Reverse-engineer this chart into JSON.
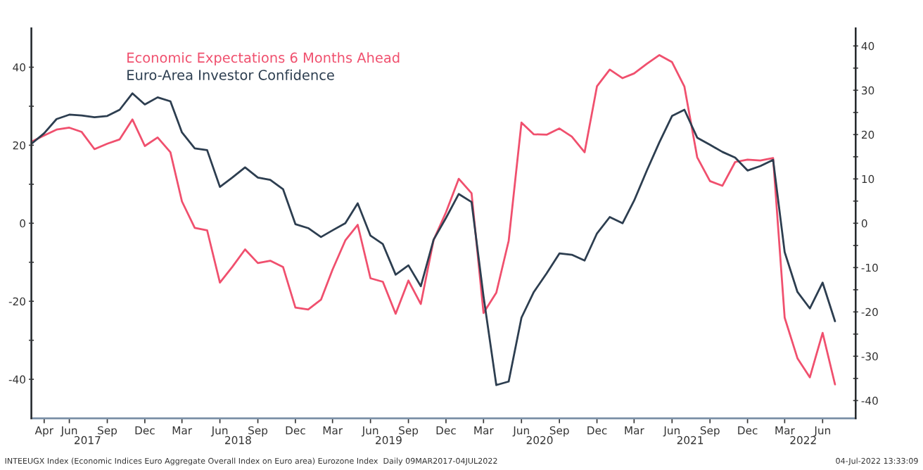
{
  "chart_data": {
    "type": "line",
    "x": [
      "2017-03",
      "2017-04",
      "2017-05",
      "2017-06",
      "2017-07",
      "2017-08",
      "2017-09",
      "2017-10",
      "2017-11",
      "2017-12",
      "2018-01",
      "2018-02",
      "2018-03",
      "2018-04",
      "2018-05",
      "2018-06",
      "2018-07",
      "2018-08",
      "2018-09",
      "2018-10",
      "2018-11",
      "2018-12",
      "2019-01",
      "2019-02",
      "2019-03",
      "2019-04",
      "2019-05",
      "2019-06",
      "2019-07",
      "2019-08",
      "2019-09",
      "2019-10",
      "2019-11",
      "2019-12",
      "2020-01",
      "2020-02",
      "2020-03",
      "2020-04",
      "2020-05",
      "2020-06",
      "2020-07",
      "2020-08",
      "2020-09",
      "2020-10",
      "2020-11",
      "2020-12",
      "2021-01",
      "2021-02",
      "2021-03",
      "2021-04",
      "2021-05",
      "2021-06",
      "2021-07",
      "2021-08",
      "2021-09",
      "2021-10",
      "2021-11",
      "2021-12",
      "2022-01",
      "2022-02",
      "2022-03",
      "2022-04",
      "2022-05",
      "2022-06",
      "2022-07"
    ],
    "series": [
      {
        "name": "Economic Expectations 6 Months Ahead",
        "color": "#f0506e",
        "axis": "y",
        "values": [
          20.9,
          22.5,
          24.0,
          24.5,
          23.4,
          19.0,
          20.4,
          21.5,
          26.6,
          19.8,
          22.0,
          18.2,
          5.6,
          -1.2,
          -1.8,
          -15.2,
          -11.2,
          -6.7,
          -10.2,
          -9.6,
          -11.2,
          -21.6,
          -22.1,
          -19.6,
          -11.9,
          -4.4,
          -0.4,
          -14.1,
          -15.0,
          -23.2,
          -14.7,
          -20.7,
          -4.3,
          2.8,
          11.4,
          7.7,
          -23,
          -17.8,
          -4.5,
          25.8,
          22.8,
          22.7,
          24.3,
          22.2,
          18.2,
          35.1,
          39.4,
          37.2,
          38.4,
          40.9,
          43.1,
          41.3,
          35.0,
          16.9,
          10.8,
          9.6,
          15.7,
          16.3,
          16.1,
          16.7,
          -24.2,
          -34.6,
          -39.5,
          -28.1,
          -41.3
        ]
      },
      {
        "name": "Euro-Area Investor Confidence",
        "color": "#2d3e50",
        "axis": "y2",
        "values": [
          17.9,
          20.3,
          23.5,
          24.5,
          24.3,
          23.9,
          24.2,
          25.6,
          29.3,
          26.8,
          28.4,
          27.5,
          20.5,
          16.9,
          16.5,
          8.2,
          10.3,
          12.6,
          10.3,
          9.8,
          7.7,
          -0.2,
          -1.1,
          -3.1,
          -1.6,
          0,
          4.5,
          -2.8,
          -4.7,
          -11.6,
          -9.5,
          -14.2,
          -3.7,
          1.2,
          6.6,
          4.8,
          -16.5,
          -36.5,
          -35.7,
          -21.3,
          -15.5,
          -11.3,
          -6.8,
          -7.1,
          -8.4,
          -2.3,
          1.4,
          0,
          5.1,
          11.9,
          18.2,
          24.2,
          25.6,
          19.3,
          17.7,
          16.1,
          14.8,
          11.9,
          12.9,
          14.3,
          -6.5,
          -15.5,
          -19.2,
          -13.4,
          -22.1
        ]
      }
    ],
    "xlim": [
      "2017-03-01",
      "2022-08-20"
    ],
    "xticks": [
      {
        "value": "2017-04",
        "label": "Apr"
      },
      {
        "value": "2017-06",
        "label": "Jun"
      },
      {
        "value": "2017-09",
        "label": "Sep"
      },
      {
        "value": "2017-12",
        "label": "Dec"
      },
      {
        "value": "2018-03",
        "label": "Mar"
      },
      {
        "value": "2018-06",
        "label": "Jun"
      },
      {
        "value": "2018-09",
        "label": "Sep"
      },
      {
        "value": "2018-12",
        "label": "Dec"
      },
      {
        "value": "2019-03",
        "label": "Mar"
      },
      {
        "value": "2019-06",
        "label": "Jun"
      },
      {
        "value": "2019-09",
        "label": "Sep"
      },
      {
        "value": "2019-12",
        "label": "Dec"
      },
      {
        "value": "2020-03",
        "label": "Mar"
      },
      {
        "value": "2020-06",
        "label": "Jun"
      },
      {
        "value": "2020-09",
        "label": "Sep"
      },
      {
        "value": "2020-12",
        "label": "Dec"
      },
      {
        "value": "2021-03",
        "label": "Mar"
      },
      {
        "value": "2021-06",
        "label": "Jun"
      },
      {
        "value": "2021-09",
        "label": "Sep"
      },
      {
        "value": "2021-12",
        "label": "Dec"
      },
      {
        "value": "2022-03",
        "label": "Mar"
      },
      {
        "value": "2022-06",
        "label": "Jun"
      }
    ],
    "x2lim": [
      "2017-03-01",
      "2022-08-20"
    ],
    "x2ticks": [
      {
        "value": "2017-07-15",
        "label": "2017"
      },
      {
        "value": "2018-07-15",
        "label": "2018"
      },
      {
        "value": "2019-07-15",
        "label": "2019"
      },
      {
        "value": "2020-07-15",
        "label": "2020"
      },
      {
        "value": "2021-07-15",
        "label": "2021"
      },
      {
        "value": "2022-04-15",
        "label": "2022"
      }
    ],
    "ylim": [
      -50,
      50
    ],
    "yticks": [
      -40,
      {
        "value": -30,
        "label": null
      },
      -20,
      {
        "value": -10,
        "label": null
      },
      0,
      {
        "value": 10,
        "label": null
      },
      20,
      {
        "value": 30,
        "label": null
      },
      40
    ],
    "y2lim": [
      -44,
      44
    ],
    "y2ticks": [
      -40,
      {
        "value": -35,
        "label": null
      },
      -30,
      {
        "value": -25,
        "label": null
      },
      -20,
      {
        "value": -15,
        "label": null
      },
      -10,
      {
        "value": -5,
        "label": null
      },
      0,
      {
        "value": 5,
        "label": null
      },
      10,
      {
        "value": 15,
        "label": null
      },
      20,
      {
        "value": 25,
        "label": null
      },
      30,
      {
        "value": 35,
        "label": null
      },
      40
    ],
    "legend": "top left",
    "annotations": [
      "INTEEUGX Index (Economic Indices Euro Aggregate Overall Index on Euro area) Eurozone Index  Daily 09MAR2017-04JUL2022",
      "04-Jul-2022 13:33:09"
    ]
  }
}
